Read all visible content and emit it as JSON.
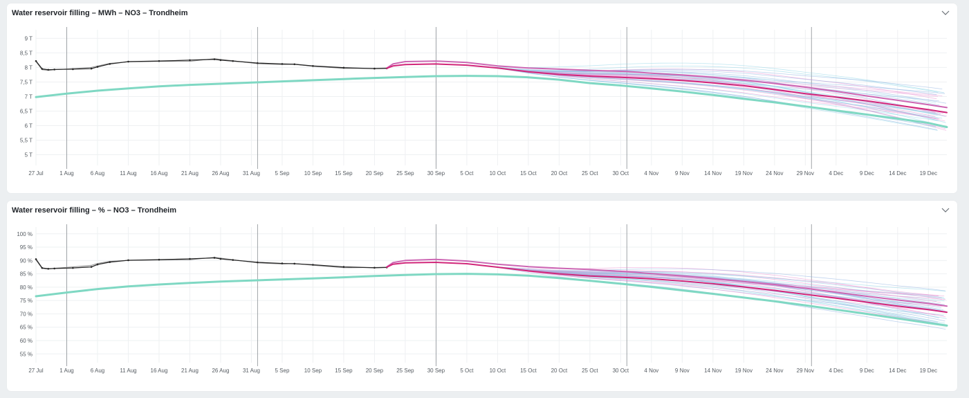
{
  "colors": {
    "actual": "#262626",
    "forecast_main": "#d1267a",
    "forecast_secondary": "#cc66b3",
    "normal": "#7fd8c3",
    "ensemble_teal": "#8ad3e6",
    "ensemble_blue": "#8aaee0",
    "ensemble_pink": "#e88ad0"
  },
  "x_ticks": [
    "27 Jul",
    "1 Aug",
    "6 Aug",
    "11 Aug",
    "16 Aug",
    "21 Aug",
    "26 Aug",
    "31 Aug",
    "5 Sep",
    "10 Sep",
    "15 Sep",
    "20 Sep",
    "25 Sep",
    "30 Sep",
    "5 Oct",
    "10 Oct",
    "15 Oct",
    "20 Oct",
    "25 Oct",
    "30 Oct",
    "4 Nov",
    "9 Nov",
    "14 Nov",
    "19 Nov",
    "24 Nov",
    "29 Nov",
    "4 Dec",
    "9 Dec",
    "14 Dec",
    "19 Dec"
  ],
  "chart_data": [
    {
      "type": "line",
      "title": "Water reservoir filling – MWh – NO3 – Trondheim",
      "ylabel": "",
      "y_ticks": [
        {
          "value": 5,
          "label": "5 T"
        },
        {
          "value": 5.5,
          "label": "5,5 T"
        },
        {
          "value": 6,
          "label": "6 T"
        },
        {
          "value": 6.5,
          "label": "6,5 T"
        },
        {
          "value": 7,
          "label": "7 T"
        },
        {
          "value": 7.5,
          "label": "7,5 T"
        },
        {
          "value": 8,
          "label": "8 T"
        },
        {
          "value": 8.5,
          "label": "8,5 T"
        },
        {
          "value": 9,
          "label": "9 T"
        }
      ],
      "ylim": [
        4.75,
        9.2
      ],
      "xlim_days": [
        0,
        148
      ],
      "vlines_days": [
        5,
        36,
        65,
        96,
        126
      ],
      "series": [
        {
          "role": "actual",
          "x": [
            0,
            1,
            2,
            3,
            6,
            9,
            10,
            12,
            15,
            20,
            25,
            29,
            30,
            32,
            36,
            40,
            42,
            45,
            50,
            55,
            57
          ],
          "values": [
            8.22,
            7.95,
            7.92,
            7.93,
            7.94,
            7.96,
            8.02,
            8.12,
            8.2,
            8.22,
            8.25,
            8.28,
            8.25,
            8.22,
            8.15,
            8.12,
            8.11,
            8.05,
            7.99,
            7.96,
            7.97
          ]
        },
        {
          "role": "actual_alt",
          "x": [
            0,
            1,
            2,
            3,
            6,
            9,
            10,
            12,
            15,
            20,
            25,
            29,
            30,
            32,
            36,
            40,
            42,
            45,
            50,
            55,
            57
          ],
          "values": [
            8.2,
            7.92,
            7.9,
            7.92,
            7.96,
            8.0,
            8.05,
            8.14,
            8.19,
            8.21,
            8.21,
            8.3,
            8.28,
            8.23,
            8.13,
            8.1,
            8.11,
            8.04,
            7.97,
            7.97,
            7.98
          ]
        },
        {
          "role": "forecast_secondary",
          "x": [
            57,
            58,
            60,
            65,
            70,
            75,
            80,
            85,
            90,
            96,
            100,
            105,
            110,
            115,
            120,
            125,
            130,
            135,
            140,
            145,
            148
          ],
          "values": [
            7.98,
            8.12,
            8.2,
            8.22,
            8.17,
            8.05,
            7.98,
            7.94,
            7.9,
            7.86,
            7.8,
            7.74,
            7.66,
            7.56,
            7.45,
            7.32,
            7.18,
            7.02,
            6.87,
            6.72,
            6.62
          ]
        },
        {
          "role": "forecast_main",
          "x": [
            57,
            58,
            60,
            65,
            70,
            75,
            80,
            85,
            90,
            96,
            100,
            105,
            110,
            115,
            120,
            125,
            130,
            135,
            140,
            145,
            148
          ],
          "values": [
            7.97,
            8.05,
            8.1,
            8.12,
            8.08,
            7.98,
            7.85,
            7.76,
            7.7,
            7.65,
            7.61,
            7.55,
            7.47,
            7.37,
            7.24,
            7.1,
            6.98,
            6.85,
            6.7,
            6.55,
            6.45
          ]
        },
        {
          "role": "normal",
          "x": [
            0,
            5,
            10,
            15,
            20,
            25,
            30,
            35,
            40,
            45,
            50,
            55,
            60,
            65,
            70,
            75,
            80,
            85,
            90,
            95,
            100,
            105,
            110,
            115,
            120,
            125,
            130,
            135,
            140,
            145,
            148
          ],
          "values": [
            6.98,
            7.1,
            7.2,
            7.28,
            7.35,
            7.4,
            7.44,
            7.48,
            7.52,
            7.56,
            7.6,
            7.64,
            7.67,
            7.7,
            7.71,
            7.7,
            7.66,
            7.58,
            7.46,
            7.38,
            7.28,
            7.17,
            7.05,
            6.92,
            6.8,
            6.66,
            6.52,
            6.38,
            6.24,
            6.09,
            5.95
          ]
        }
      ]
    },
    {
      "type": "line",
      "title": "Water reservoir filling – % – NO3 – Trondheim",
      "ylabel": "",
      "y_ticks": [
        {
          "value": 55,
          "label": "55 %"
        },
        {
          "value": 60,
          "label": "60 %"
        },
        {
          "value": 65,
          "label": "65 %"
        },
        {
          "value": 70,
          "label": "70 %"
        },
        {
          "value": 75,
          "label": "75 %"
        },
        {
          "value": 80,
          "label": "80 %"
        },
        {
          "value": 85,
          "label": "85 %"
        },
        {
          "value": 90,
          "label": "90 %"
        },
        {
          "value": 95,
          "label": "95 %"
        },
        {
          "value": 100,
          "label": "100 %"
        }
      ],
      "ylim": [
        53,
        101.5
      ],
      "xlim_days": [
        0,
        148
      ],
      "vlines_days": [
        5,
        36,
        65,
        96,
        126
      ],
      "series": [
        {
          "role": "actual",
          "x": [
            0,
            1,
            2,
            3,
            6,
            9,
            10,
            12,
            15,
            20,
            25,
            29,
            30,
            32,
            36,
            40,
            42,
            45,
            50,
            55,
            57
          ],
          "values": [
            90.5,
            87.2,
            86.9,
            87.0,
            87.2,
            87.6,
            88.5,
            89.4,
            90.1,
            90.3,
            90.6,
            91.0,
            90.6,
            90.2,
            89.3,
            88.9,
            88.8,
            88.4,
            87.6,
            87.3,
            87.4
          ]
        },
        {
          "role": "actual_alt",
          "x": [
            0,
            1,
            2,
            3,
            6,
            9,
            10,
            12,
            15,
            20,
            25,
            29,
            30,
            32,
            36,
            40,
            42,
            45,
            50,
            55,
            57
          ],
          "values": [
            90.2,
            87.0,
            86.8,
            87.1,
            87.6,
            88.2,
            88.9,
            89.7,
            90.0,
            90.2,
            90.3,
            91.2,
            90.9,
            90.3,
            89.1,
            88.7,
            88.9,
            88.2,
            87.3,
            87.4,
            87.5
          ]
        },
        {
          "role": "forecast_secondary",
          "x": [
            57,
            58,
            60,
            65,
            70,
            75,
            80,
            85,
            90,
            96,
            100,
            105,
            110,
            115,
            120,
            125,
            130,
            135,
            140,
            145,
            148
          ],
          "values": [
            87.6,
            89.2,
            90.0,
            90.4,
            89.8,
            88.6,
            87.7,
            87.1,
            86.6,
            85.8,
            85.1,
            84.2,
            83.2,
            82.1,
            81.0,
            79.6,
            78.1,
            76.6,
            75.2,
            73.9,
            72.9
          ]
        },
        {
          "role": "forecast_main",
          "x": [
            57,
            58,
            60,
            65,
            70,
            75,
            80,
            85,
            90,
            96,
            100,
            105,
            110,
            115,
            120,
            125,
            130,
            135,
            140,
            145,
            148
          ],
          "values": [
            87.5,
            88.6,
            89.1,
            89.3,
            88.8,
            87.5,
            86.1,
            85.0,
            84.2,
            83.6,
            83.1,
            82.3,
            81.3,
            80.1,
            78.8,
            77.3,
            75.9,
            74.4,
            72.9,
            71.6,
            70.6
          ]
        },
        {
          "role": "normal",
          "x": [
            0,
            5,
            10,
            15,
            20,
            25,
            30,
            35,
            40,
            45,
            50,
            55,
            60,
            65,
            70,
            75,
            80,
            85,
            90,
            95,
            100,
            105,
            110,
            115,
            120,
            125,
            130,
            135,
            140,
            145,
            148
          ],
          "values": [
            76.6,
            78.0,
            79.3,
            80.3,
            81.0,
            81.6,
            82.1,
            82.5,
            82.9,
            83.3,
            83.7,
            84.2,
            84.6,
            84.9,
            85.0,
            84.8,
            84.3,
            83.4,
            82.4,
            81.3,
            80.1,
            78.8,
            77.5,
            76.1,
            74.7,
            73.2,
            71.6,
            70.0,
            68.3,
            66.6,
            65.6
          ]
        }
      ]
    }
  ]
}
